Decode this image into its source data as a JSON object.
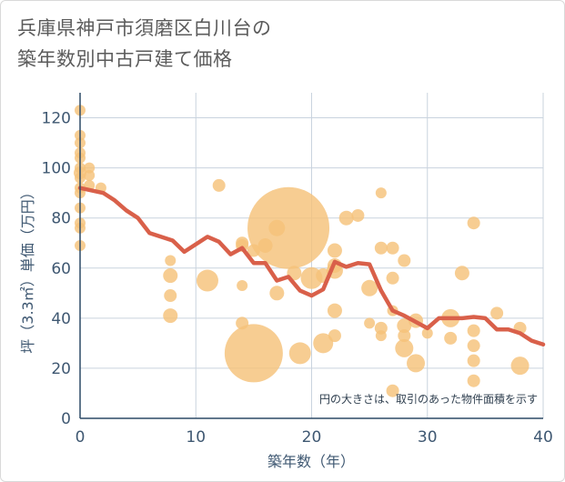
{
  "title": {
    "line1": "兵庫県神戸市須磨区白川台の",
    "line2": "築年数別中古戸建て価格"
  },
  "chart_data": {
    "type": "scatter",
    "xlabel": "築年数（年）",
    "ylabel": "坪（3.3㎡）単価（万円）",
    "xlim": [
      0,
      40
    ],
    "ylim": [
      0,
      130
    ],
    "xticks": [
      0,
      10,
      20,
      30,
      40
    ],
    "yticks": [
      0,
      20,
      40,
      60,
      80,
      100,
      120
    ],
    "grid": true,
    "note": "円の大きさは、取引のあった物件面積を示す",
    "colors": {
      "bubble": "#f5c27a",
      "line": "#d9604a"
    },
    "scatter_series": {
      "points": [
        {
          "x": 0,
          "y": 123,
          "size": 6
        },
        {
          "x": 0,
          "y": 113,
          "size": 6
        },
        {
          "x": 0,
          "y": 110,
          "size": 6
        },
        {
          "x": 0,
          "y": 106,
          "size": 6
        },
        {
          "x": 0,
          "y": 104,
          "size": 6
        },
        {
          "x": 0,
          "y": 100,
          "size": 6
        },
        {
          "x": 0,
          "y": 98,
          "size": 7
        },
        {
          "x": 0,
          "y": 96,
          "size": 6
        },
        {
          "x": 0,
          "y": 92,
          "size": 6
        },
        {
          "x": 0,
          "y": 90,
          "size": 6
        },
        {
          "x": 0,
          "y": 84,
          "size": 6
        },
        {
          "x": 0,
          "y": 78,
          "size": 6
        },
        {
          "x": 0,
          "y": 76,
          "size": 6
        },
        {
          "x": 0,
          "y": 69,
          "size": 6
        },
        {
          "x": 0.8,
          "y": 100,
          "size": 6
        },
        {
          "x": 0.8,
          "y": 97,
          "size": 6
        },
        {
          "x": 0.8,
          "y": 93,
          "size": 6
        },
        {
          "x": 1.8,
          "y": 92,
          "size": 6
        },
        {
          "x": 7.8,
          "y": 63,
          "size": 6
        },
        {
          "x": 7.8,
          "y": 57,
          "size": 8
        },
        {
          "x": 7.8,
          "y": 49,
          "size": 7
        },
        {
          "x": 7.8,
          "y": 41,
          "size": 8
        },
        {
          "x": 11,
          "y": 55,
          "size": 12
        },
        {
          "x": 12,
          "y": 93,
          "size": 7
        },
        {
          "x": 14,
          "y": 70,
          "size": 7
        },
        {
          "x": 14,
          "y": 69,
          "size": 7
        },
        {
          "x": 14,
          "y": 53,
          "size": 6
        },
        {
          "x": 14,
          "y": 38,
          "size": 7
        },
        {
          "x": 15,
          "y": 26,
          "size": 32
        },
        {
          "x": 15,
          "y": 67,
          "size": 7
        },
        {
          "x": 16,
          "y": 69,
          "size": 8
        },
        {
          "x": 17,
          "y": 76,
          "size": 9
        },
        {
          "x": 17,
          "y": 50,
          "size": 8
        },
        {
          "x": 18,
          "y": 76,
          "size": 45
        },
        {
          "x": 18.5,
          "y": 58,
          "size": 8
        },
        {
          "x": 19,
          "y": 26,
          "size": 12
        },
        {
          "x": 20,
          "y": 56,
          "size": 12
        },
        {
          "x": 21,
          "y": 57,
          "size": 8
        },
        {
          "x": 21,
          "y": 30,
          "size": 11
        },
        {
          "x": 22,
          "y": 67,
          "size": 8
        },
        {
          "x": 22,
          "y": 61,
          "size": 8
        },
        {
          "x": 22,
          "y": 59,
          "size": 9
        },
        {
          "x": 22,
          "y": 43,
          "size": 8
        },
        {
          "x": 22,
          "y": 33,
          "size": 7
        },
        {
          "x": 23,
          "y": 80,
          "size": 8
        },
        {
          "x": 24,
          "y": 81,
          "size": 7
        },
        {
          "x": 25,
          "y": 52,
          "size": 9
        },
        {
          "x": 25,
          "y": 38,
          "size": 6
        },
        {
          "x": 26,
          "y": 90,
          "size": 6
        },
        {
          "x": 26,
          "y": 68,
          "size": 7
        },
        {
          "x": 26,
          "y": 36,
          "size": 7
        },
        {
          "x": 26,
          "y": 33,
          "size": 6
        },
        {
          "x": 27,
          "y": 68,
          "size": 7
        },
        {
          "x": 27,
          "y": 56,
          "size": 7
        },
        {
          "x": 27,
          "y": 43,
          "size": 6
        },
        {
          "x": 27,
          "y": 11,
          "size": 7
        },
        {
          "x": 28,
          "y": 63,
          "size": 7
        },
        {
          "x": 28,
          "y": 37,
          "size": 8
        },
        {
          "x": 28,
          "y": 33,
          "size": 7
        },
        {
          "x": 28,
          "y": 28,
          "size": 10
        },
        {
          "x": 29,
          "y": 39,
          "size": 8
        },
        {
          "x": 29,
          "y": 22,
          "size": 10
        },
        {
          "x": 30,
          "y": 34,
          "size": 6
        },
        {
          "x": 32,
          "y": 40,
          "size": 10
        },
        {
          "x": 32,
          "y": 32,
          "size": 7
        },
        {
          "x": 33,
          "y": 58,
          "size": 8
        },
        {
          "x": 34,
          "y": 78,
          "size": 7
        },
        {
          "x": 34,
          "y": 35,
          "size": 7
        },
        {
          "x": 34,
          "y": 29,
          "size": 7
        },
        {
          "x": 34,
          "y": 23,
          "size": 7
        },
        {
          "x": 34,
          "y": 15,
          "size": 7
        },
        {
          "x": 36,
          "y": 42,
          "size": 7
        },
        {
          "x": 38,
          "y": 36,
          "size": 7
        },
        {
          "x": 38,
          "y": 21,
          "size": 10
        }
      ]
    },
    "line_series": {
      "x": [
        0,
        1,
        2,
        3,
        4,
        5,
        6,
        7,
        8,
        9,
        10,
        11,
        12,
        13,
        14,
        15,
        16,
        17,
        18,
        19,
        20,
        21,
        22,
        23,
        24,
        25,
        26,
        27,
        28,
        29,
        30,
        31,
        32,
        33,
        34,
        35,
        36,
        37,
        38,
        39,
        40
      ],
      "y": [
        92,
        91,
        90,
        87,
        83,
        80,
        74,
        72.5,
        71,
        66.5,
        69.5,
        72.5,
        70.5,
        65.5,
        68,
        62,
        62,
        55,
        56.5,
        51,
        49,
        51.5,
        62.5,
        60.5,
        62,
        61.5,
        51,
        43,
        41,
        38.5,
        36,
        40,
        40,
        40,
        40.5,
        40,
        35.5,
        35.5,
        34,
        31,
        29.5
      ]
    }
  }
}
